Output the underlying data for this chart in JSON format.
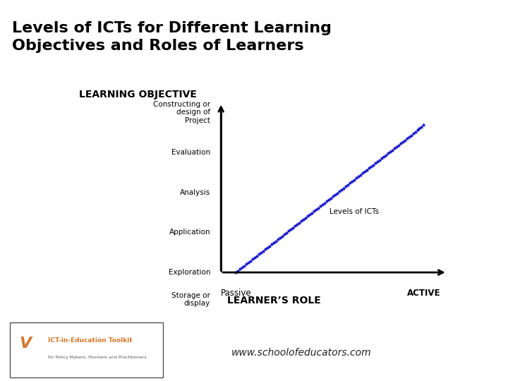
{
  "title": "Levels of ICTs for Different Learning\nObjectives and Roles of Learners",
  "title_bg": "#b8d4d8",
  "title_fontsize": 16,
  "title_color": "#000000",
  "learning_objective_label": "LEARNING OBJECTIVE",
  "learners_role_label": "LEARNER’S ROLE",
  "y_tick_labels": [
    "Storage or\ndisplay",
    "Exploration",
    "Application",
    "Analysis",
    "Evaluation",
    "Constructing or\ndesign of\nProject"
  ],
  "x_tick_labels": [
    "Passive",
    "ACTIVE"
  ],
  "diagonal_label": "Levels of ICTs",
  "dot_color": "#1a1acc",
  "background_color": "#ffffff",
  "footer_bg": "#4d7f9e",
  "footer_text": "www.schoolofeducators.com",
  "footer_text_color": "#222222",
  "right_bar_color": "#d4782a",
  "title_border_color": "#888888"
}
